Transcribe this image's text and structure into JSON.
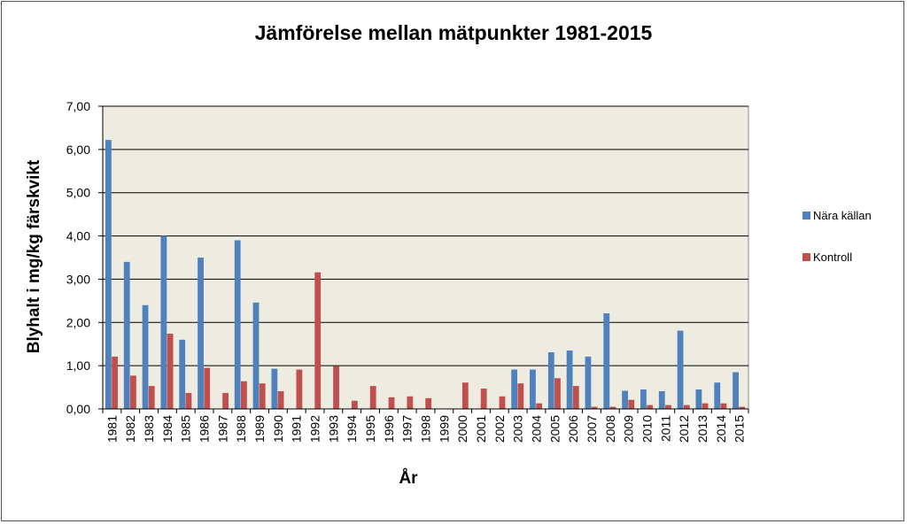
{
  "chart_data": {
    "type": "bar",
    "title": "Jämförelse mellan mätpunkter 1981-2015",
    "xlabel": "År",
    "ylabel": "Blyhalt  i mg/kg färskvikt",
    "ylim": [
      0,
      7
    ],
    "yticks": [
      "0,00",
      "1,00",
      "2,00",
      "3,00",
      "4,00",
      "5,00",
      "6,00",
      "7,00"
    ],
    "grid": true,
    "legend_position": "right",
    "categories": [
      "1981",
      "1982",
      "1983",
      "1984",
      "1985",
      "1986",
      "1987",
      "1988",
      "1989",
      "1990",
      "1991",
      "1992",
      "1993",
      "1994",
      "1995",
      "1996",
      "1997",
      "1998",
      "1999",
      "2000",
      "2001",
      "2002",
      "2003",
      "2004",
      "2005",
      "2006",
      "2007",
      "2008",
      "2009",
      "2010",
      "2011",
      "2012",
      "2013",
      "2014",
      "2015"
    ],
    "series": [
      {
        "name": "Nära källan",
        "color": "#4f81bd",
        "values": [
          6.22,
          3.4,
          2.4,
          4.0,
          1.6,
          3.5,
          null,
          3.9,
          2.46,
          0.93,
          null,
          null,
          null,
          null,
          null,
          null,
          null,
          null,
          null,
          null,
          null,
          null,
          0.91,
          0.91,
          1.31,
          1.35,
          1.21,
          2.21,
          0.42,
          0.45,
          0.41,
          1.81,
          0.45,
          0.61,
          0.85
        ]
      },
      {
        "name": "Kontroll",
        "color": "#c0504d",
        "values": [
          1.21,
          0.77,
          0.53,
          1.74,
          0.37,
          0.95,
          0.37,
          0.64,
          0.59,
          0.41,
          0.91,
          3.16,
          0.99,
          0.19,
          0.53,
          0.27,
          0.29,
          0.25,
          null,
          0.61,
          0.47,
          0.29,
          0.59,
          0.13,
          0.71,
          0.53,
          0.05,
          0.05,
          0.21,
          0.09,
          0.09,
          0.09,
          0.13,
          0.13,
          0.05
        ]
      }
    ],
    "plot_background": "#eeece1"
  }
}
